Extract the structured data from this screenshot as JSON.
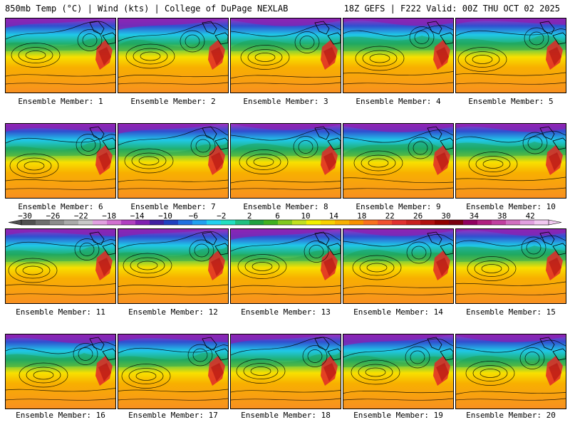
{
  "header": {
    "left_title": "850mb Temp (°C) | Wind (kts) | College of DuPage NEXLAB",
    "right_title": "18Z GEFS | F222 Valid: 00Z THU OCT 02 2025"
  },
  "members": [
    {
      "label": "Ensemble Member: 1"
    },
    {
      "label": "Ensemble Member: 2"
    },
    {
      "label": "Ensemble Member: 3"
    },
    {
      "label": "Ensemble Member: 4"
    },
    {
      "label": "Ensemble Member: 5"
    },
    {
      "label": "Ensemble Member: 6"
    },
    {
      "label": "Ensemble Member: 7"
    },
    {
      "label": "Ensemble Member: 8"
    },
    {
      "label": "Ensemble Member: 9"
    },
    {
      "label": "Ensemble Member: 10"
    },
    {
      "label": "Ensemble Member: 11"
    },
    {
      "label": "Ensemble Member: 12"
    },
    {
      "label": "Ensemble Member: 13"
    },
    {
      "label": "Ensemble Member: 14"
    },
    {
      "label": "Ensemble Member: 15"
    },
    {
      "label": "Ensemble Member: 16"
    },
    {
      "label": "Ensemble Member: 17"
    },
    {
      "label": "Ensemble Member: 18"
    },
    {
      "label": "Ensemble Member: 19"
    },
    {
      "label": "Ensemble Member: 20"
    }
  ],
  "colorbar": {
    "tick_labels": [
      "−30",
      "−26",
      "−22",
      "−18",
      "−14",
      "−10",
      "−6",
      "−2",
      "2",
      "6",
      "10",
      "14",
      "18",
      "22",
      "26",
      "30",
      "34",
      "38",
      "42"
    ],
    "colors": [
      "#505050",
      "#6e6e6e",
      "#8c8c8c",
      "#aaaaaa",
      "#c8c8c8",
      "#e0a0e0",
      "#d070d0",
      "#b040c0",
      "#8020b0",
      "#4020a0",
      "#2040c0",
      "#2070e0",
      "#20a0f0",
      "#20d0f0",
      "#20e0c0",
      "#20c080",
      "#20a040",
      "#40b020",
      "#80c820",
      "#c0e020",
      "#f0f000",
      "#f8d000",
      "#f8b000",
      "#f89000",
      "#f87020",
      "#f05030",
      "#e03030",
      "#c82020",
      "#b01010",
      "#900000",
      "#780010",
      "#900060",
      "#b02080",
      "#c040a0",
      "#d070c0",
      "#e0a0e0",
      "#f0c8f0"
    ]
  }
}
